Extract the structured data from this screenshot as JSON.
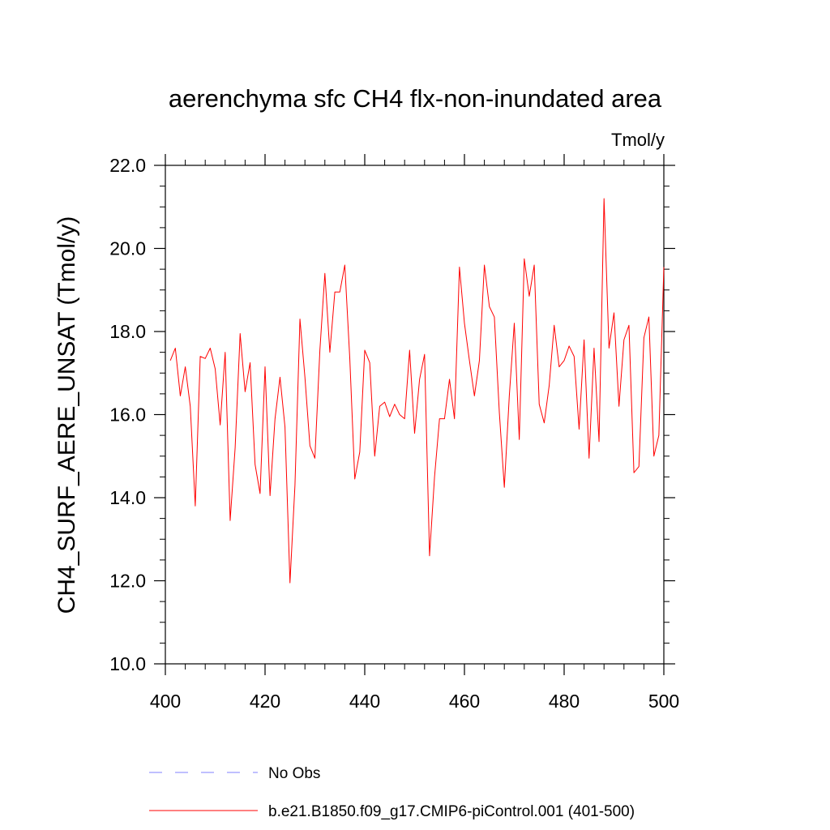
{
  "chart_data": {
    "type": "line",
    "title": "aerenchyma sfc CH4 flx-non-inundated area",
    "units": "Tmol/y",
    "ylabel": "CH4_SURF_AERE_UNSAT  (Tmol/y)",
    "xlabel": "",
    "xlim": [
      400,
      500
    ],
    "ylim": [
      10.0,
      22.0
    ],
    "xticks": [
      400,
      420,
      440,
      460,
      480,
      500
    ],
    "xtick_labels": [
      "400",
      "420",
      "440",
      "460",
      "480",
      "500"
    ],
    "yticks": [
      10.0,
      12.0,
      14.0,
      16.0,
      18.0,
      20.0,
      22.0
    ],
    "ytick_labels": [
      "10.0",
      "12.0",
      "14.0",
      "16.0",
      "18.0",
      "20.0",
      "22.0"
    ],
    "grid": false,
    "legend_position": "bottom",
    "series": [
      {
        "name": "b.e21.B1850.f09_g17.CMIP6-piControl.001 (401-500)",
        "color": "#ff0000",
        "style": "solid",
        "x": [
          401,
          402,
          403,
          404,
          405,
          406,
          407,
          408,
          409,
          410,
          411,
          412,
          413,
          414,
          415,
          416,
          417,
          418,
          419,
          420,
          421,
          422,
          423,
          424,
          425,
          426,
          427,
          428,
          429,
          430,
          431,
          432,
          433,
          434,
          435,
          436,
          437,
          438,
          439,
          440,
          441,
          442,
          443,
          444,
          445,
          446,
          447,
          448,
          449,
          450,
          451,
          452,
          453,
          454,
          455,
          456,
          457,
          458,
          459,
          460,
          461,
          462,
          463,
          464,
          465,
          466,
          467,
          468,
          469,
          470,
          471,
          472,
          473,
          474,
          475,
          476,
          477,
          478,
          479,
          480,
          481,
          482,
          483,
          484,
          485,
          486,
          487,
          488,
          489,
          490,
          491,
          492,
          493,
          494,
          495,
          496,
          497,
          498,
          499,
          500
        ],
        "y": [
          17.3,
          17.6,
          16.45,
          17.15,
          16.2,
          13.8,
          17.4,
          17.35,
          17.6,
          17.1,
          15.75,
          17.5,
          13.45,
          15.2,
          17.95,
          16.55,
          17.25,
          14.8,
          14.1,
          17.15,
          14.05,
          15.9,
          16.9,
          15.7,
          11.95,
          14.3,
          18.3,
          16.9,
          15.25,
          14.95,
          17.55,
          19.4,
          17.5,
          18.95,
          18.95,
          19.6,
          17.35,
          14.45,
          15.1,
          17.55,
          17.25,
          15.0,
          16.2,
          16.3,
          15.95,
          16.25,
          16.0,
          15.9,
          17.55,
          15.55,
          16.85,
          17.45,
          12.6,
          14.5,
          15.9,
          15.9,
          16.85,
          15.9,
          19.55,
          18.2,
          17.3,
          16.45,
          17.3,
          19.6,
          18.6,
          18.35,
          16.05,
          14.25,
          16.45,
          18.2,
          15.4,
          19.75,
          18.85,
          19.6,
          16.25,
          15.8,
          16.7,
          18.15,
          17.15,
          17.3,
          17.65,
          17.4,
          15.65,
          17.8,
          14.95,
          17.6,
          15.35,
          21.2,
          17.6,
          18.45,
          16.2,
          17.8,
          18.15,
          14.6,
          14.75,
          17.85,
          18.35,
          15.0,
          15.5,
          19.55
        ]
      },
      {
        "name": "No Obs",
        "color": "#8080ff",
        "style": "dashed",
        "x": [],
        "y": []
      }
    ]
  }
}
